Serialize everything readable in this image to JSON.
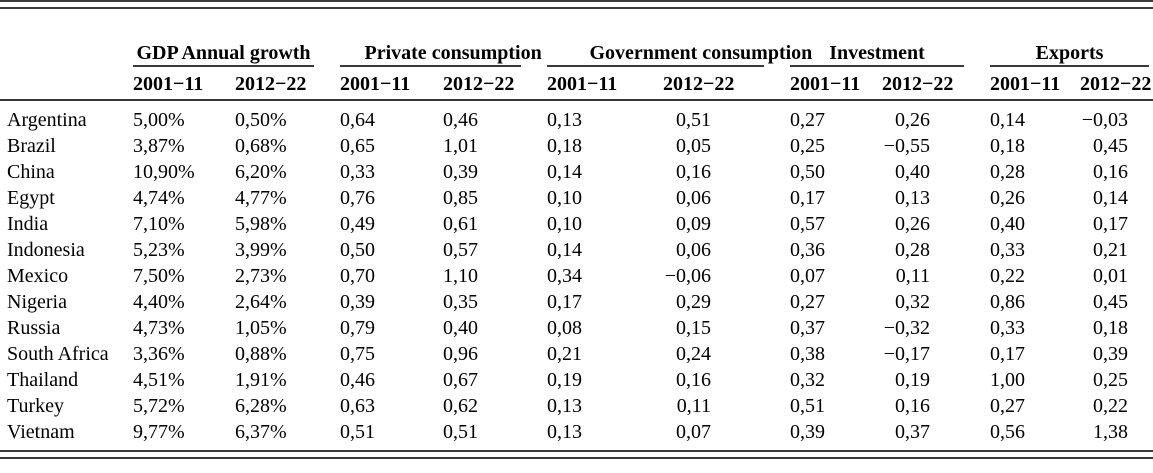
{
  "table": {
    "groups": [
      {
        "label": "GDP Annual growth",
        "sub": [
          "2001−11",
          "2012−22"
        ]
      },
      {
        "label": "Private consumption",
        "sub": [
          "2001−11",
          "2012−22"
        ]
      },
      {
        "label": "Government consumption",
        "sub": [
          "2001−11",
          "2012−22"
        ]
      },
      {
        "label": "Investment",
        "sub": [
          "2001−11",
          "2012−22"
        ]
      },
      {
        "label": "Exports",
        "sub": [
          "2001−11",
          "2012−22"
        ]
      }
    ],
    "rows": [
      {
        "country": "Argentina",
        "values": [
          "5,00%",
          "0,50%",
          "0,64",
          "0,46",
          "0,13",
          "0,51",
          "0,27",
          "0,26",
          "0,14",
          "−0,03"
        ]
      },
      {
        "country": "Brazil",
        "values": [
          "3,87%",
          "0,68%",
          "0,65",
          "1,01",
          "0,18",
          "0,05",
          "0,25",
          "−0,55",
          "0,18",
          "0,45"
        ]
      },
      {
        "country": "China",
        "values": [
          "10,90%",
          "6,20%",
          "0,33",
          "0,39",
          "0,14",
          "0,16",
          "0,50",
          "0,40",
          "0,28",
          "0,16"
        ]
      },
      {
        "country": "Egypt",
        "values": [
          "4,74%",
          "4,77%",
          "0,76",
          "0,85",
          "0,10",
          "0,06",
          "0,17",
          "0,13",
          "0,26",
          "0,14"
        ]
      },
      {
        "country": "India",
        "values": [
          "7,10%",
          "5,98%",
          "0,49",
          "0,61",
          "0,10",
          "0,09",
          "0,57",
          "0,26",
          "0,40",
          "0,17"
        ]
      },
      {
        "country": "Indonesia",
        "values": [
          "5,23%",
          "3,99%",
          "0,50",
          "0,57",
          "0,14",
          "0,06",
          "0,36",
          "0,28",
          "0,33",
          "0,21"
        ]
      },
      {
        "country": "Mexico",
        "values": [
          "7,50%",
          "2,73%",
          "0,70",
          "1,10",
          "0,34",
          "−0,06",
          "0,07",
          "0,11",
          "0,22",
          "0,01"
        ]
      },
      {
        "country": "Nigeria",
        "values": [
          "4,40%",
          "2,64%",
          "0,39",
          "0,35",
          "0,17",
          "0,29",
          "0,27",
          "0,32",
          "0,86",
          "0,45"
        ]
      },
      {
        "country": "Russia",
        "values": [
          "4,73%",
          "1,05%",
          "0,79",
          "0,40",
          "0,08",
          "0,15",
          "0,37",
          "−0,32",
          "0,33",
          "0,18"
        ]
      },
      {
        "country": "South Africa",
        "values": [
          "3,36%",
          "0,88%",
          "0,75",
          "0,96",
          "0,21",
          "0,24",
          "0,38",
          "−0,17",
          "0,17",
          "0,39"
        ]
      },
      {
        "country": "Thailand",
        "values": [
          "4,51%",
          "1,91%",
          "0,46",
          "0,67",
          "0,19",
          "0,16",
          "0,32",
          "0,19",
          "1,00",
          "0,25"
        ]
      },
      {
        "country": "Turkey",
        "values": [
          "5,72%",
          "6,28%",
          "0,63",
          "0,62",
          "0,13",
          "0,11",
          "0,51",
          "0,16",
          "0,27",
          "0,22"
        ]
      },
      {
        "country": "Vietnam",
        "values": [
          "9,77%",
          "6,37%",
          "0,51",
          "0,51",
          "0,13",
          "0,07",
          "0,39",
          "0,37",
          "0,56",
          "1,38"
        ]
      }
    ]
  }
}
